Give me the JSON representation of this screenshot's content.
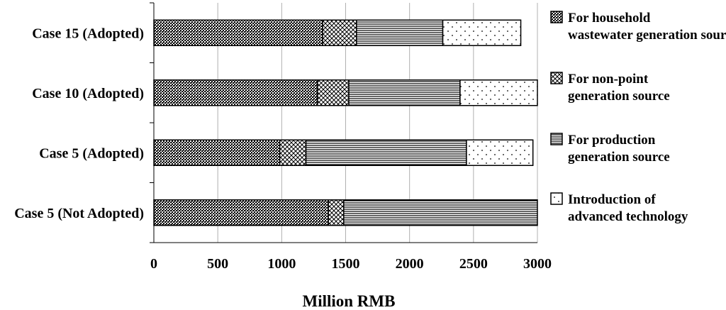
{
  "chart_data": {
    "type": "bar",
    "orientation": "horizontal",
    "stacked": true,
    "categories": [
      "Case 15 (Adopted)",
      "Case 10 (Adopted)",
      "Case 5 (Adopted)",
      "Case 5 (Not Adopted)"
    ],
    "series": [
      {
        "name": "For household wastewater generation source",
        "values": [
          1320,
          1280,
          985,
          1365
        ],
        "pattern": "dense-dots"
      },
      {
        "name": "For non-point generation source",
        "values": [
          265,
          245,
          205,
          120
        ],
        "pattern": "crosshatch"
      },
      {
        "name": "For production generation source",
        "values": [
          675,
          870,
          1255,
          1515
        ],
        "pattern": "horizontal-lines"
      },
      {
        "name": "Introduction of advanced technology",
        "values": [
          610,
          605,
          520,
          0
        ],
        "pattern": "sparse-dots"
      }
    ],
    "xlabel": "Million RMB",
    "xlim": [
      0,
      3000
    ],
    "xticks": [
      "0",
      "500",
      "1000",
      "1500",
      "2000",
      "2500",
      "3000"
    ],
    "grid": true,
    "legend_position": "right"
  }
}
